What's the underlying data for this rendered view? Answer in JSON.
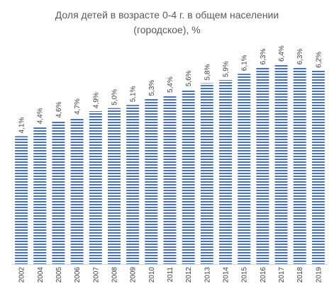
{
  "chart_data": {
    "type": "bar",
    "title": "Доля детей в возрасте 0-4 г. в общем населении (городское), %",
    "title_lines": [
      "Доля детей в возрасте 0-4 г. в общем населении",
      "(городское), %"
    ],
    "xlabel": "",
    "ylabel": "",
    "categories": [
      "2002",
      "2004",
      "2005",
      "2006",
      "2007",
      "2008",
      "2009",
      "2010",
      "2011",
      "2012",
      "2013",
      "2014",
      "2015",
      "2016",
      "2017",
      "2018",
      "2019"
    ],
    "values": [
      4.1,
      4.4,
      4.6,
      4.7,
      4.9,
      5.0,
      5.1,
      5.3,
      5.4,
      5.6,
      5.8,
      5.9,
      6.1,
      6.3,
      6.4,
      6.3,
      6.2
    ],
    "data_labels": [
      "4,1%",
      "4,4%",
      "4,6%",
      "4,7%",
      "4,9%",
      "5,0%",
      "5,1%",
      "5,3%",
      "5,4%",
      "5,6%",
      "5,8%",
      "5,9%",
      "6,1%",
      "6,3%",
      "6,4%",
      "6,3%",
      "6,2%"
    ],
    "ylim": [
      0,
      6.4
    ],
    "grid": false,
    "legend": "none",
    "bar_fill": "horizontal stripes",
    "colors": {
      "bar_stripe": "#4472C4",
      "bar_background": "#ffffff",
      "axis": "#D9D9D9",
      "text": "#404040",
      "title": "#595959"
    }
  }
}
